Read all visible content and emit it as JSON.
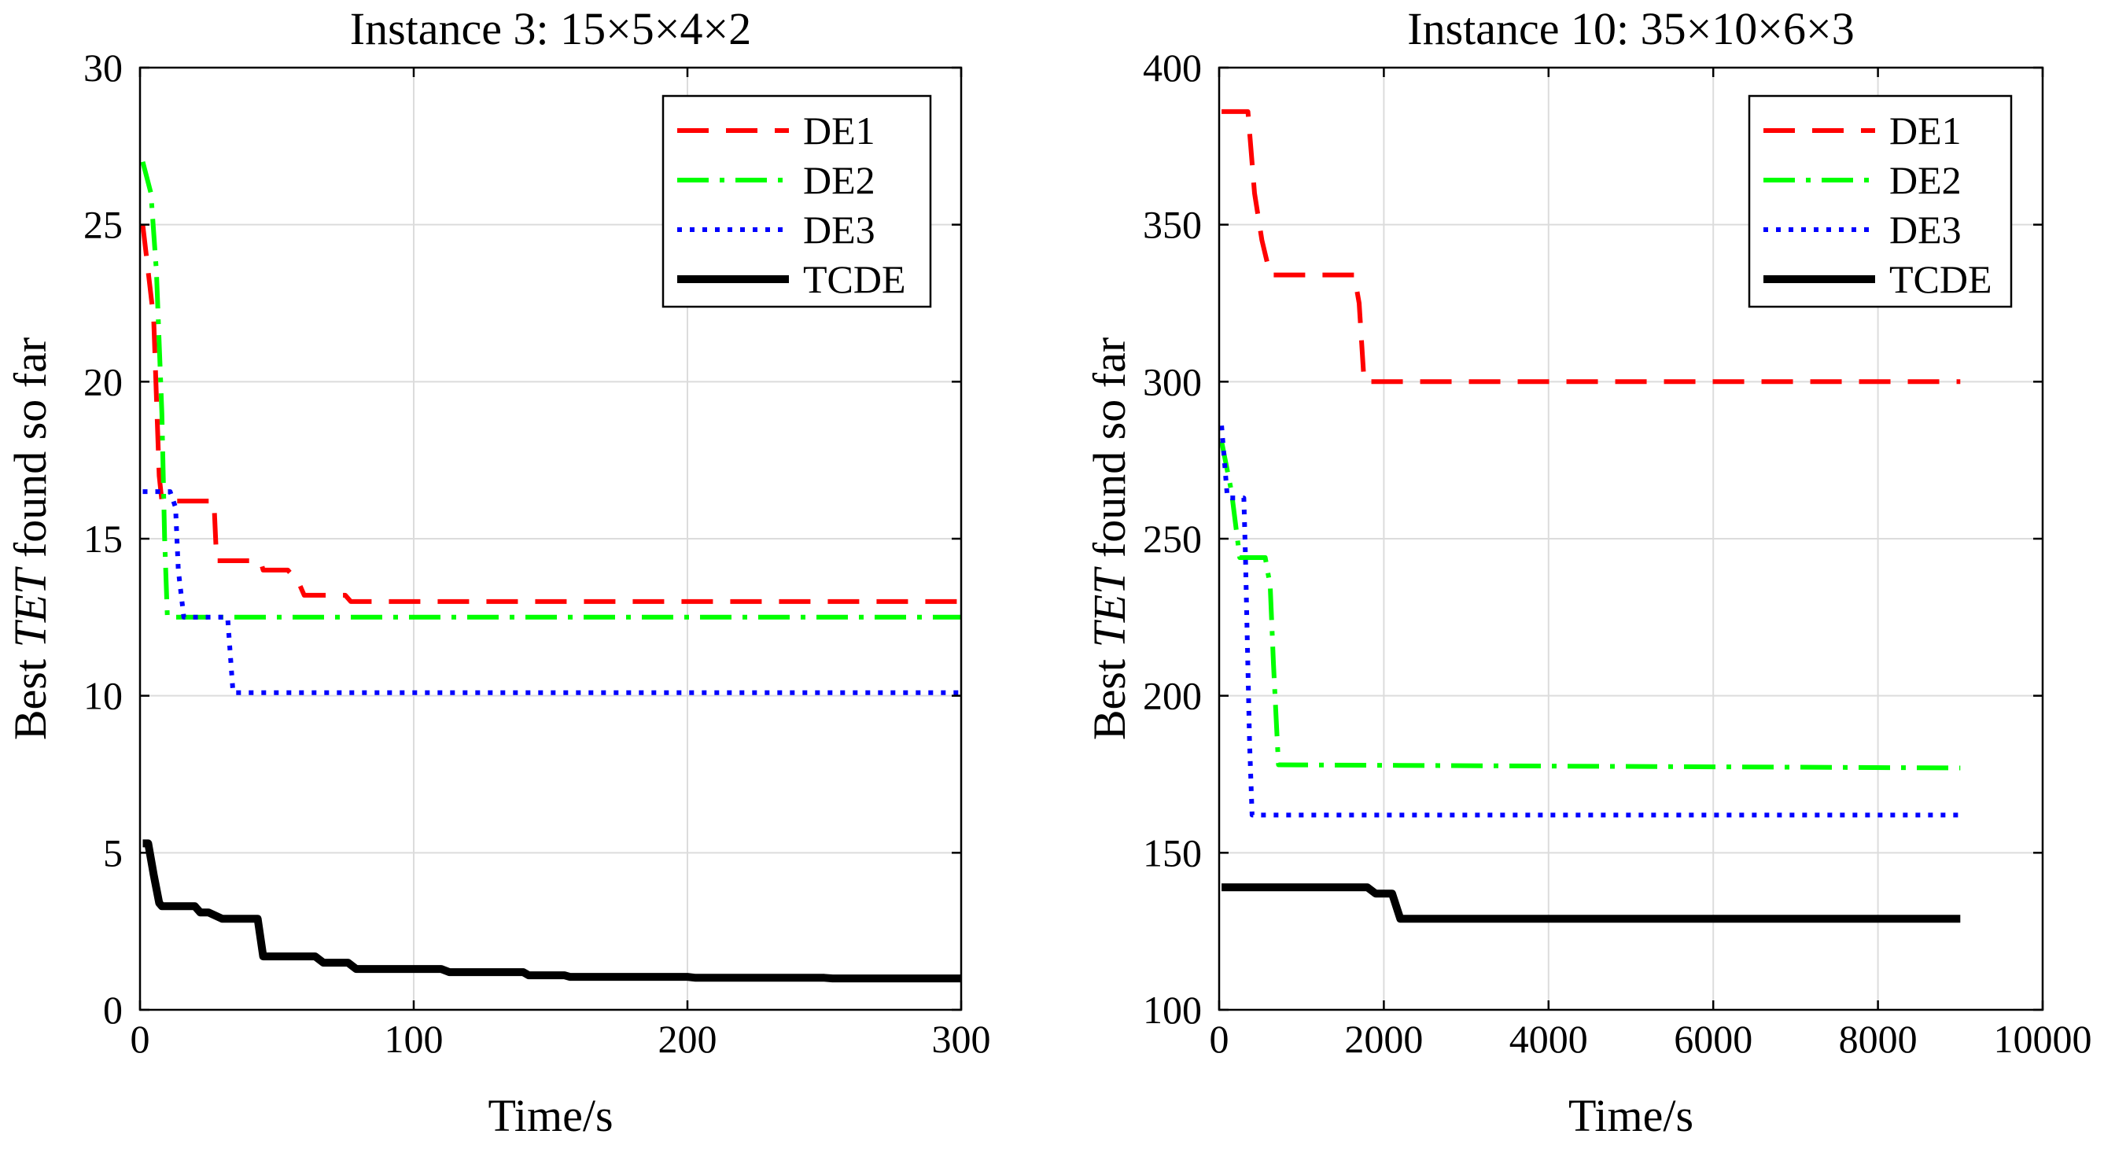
{
  "chart_data": [
    {
      "type": "line",
      "title": "Instance 3: 15×5×4×2",
      "xlabel": "Time/s",
      "ylabel_prefix": "Best ",
      "ylabel_italic": "TET",
      "ylabel_suffix": " found so far",
      "xlim": [
        0,
        300
      ],
      "ylim": [
        0,
        30
      ],
      "xticks": [
        0,
        100,
        200,
        300
      ],
      "yticks": [
        0,
        5,
        10,
        15,
        20,
        25,
        30
      ],
      "grid": true,
      "legend_position": "top-right",
      "series": [
        {
          "name": "DE1",
          "color": "#ff0000",
          "style": "dashed",
          "points": [
            [
              1,
              25
            ],
            [
              5,
              22
            ],
            [
              7,
              17
            ],
            [
              8,
              16.2
            ],
            [
              20,
              16.2
            ],
            [
              22,
              16.2
            ],
            [
              27,
              16.2
            ],
            [
              28,
              14.3
            ],
            [
              44,
              14.3
            ],
            [
              45,
              14
            ],
            [
              54,
              14
            ],
            [
              58,
              13.6
            ],
            [
              60,
              13.2
            ],
            [
              75,
              13.2
            ],
            [
              77,
              13
            ],
            [
              300,
              13
            ]
          ]
        },
        {
          "name": "DE2",
          "color": "#00ff00",
          "style": "dashdot",
          "points": [
            [
              1,
              27
            ],
            [
              4,
              26
            ],
            [
              6,
              23.5
            ],
            [
              8,
              19
            ],
            [
              9,
              15
            ],
            [
              10,
              12.5
            ],
            [
              300,
              12.5
            ]
          ]
        },
        {
          "name": "DE3",
          "color": "#0000ff",
          "style": "dotted",
          "points": [
            [
              1,
              16.5
            ],
            [
              11,
              16.5
            ],
            [
              13,
              16
            ],
            [
              14,
              14
            ],
            [
              16,
              12.5
            ],
            [
              30,
              12.5
            ],
            [
              32,
              12.5
            ],
            [
              34,
              10.1
            ],
            [
              300,
              10.1
            ]
          ]
        },
        {
          "name": "TCDE",
          "color": "#000000",
          "style": "solid",
          "points": [
            [
              1,
              5.3
            ],
            [
              3,
              5.3
            ],
            [
              5,
              4.3
            ],
            [
              7,
              3.4
            ],
            [
              8,
              3.3
            ],
            [
              20,
              3.3
            ],
            [
              22,
              3.1
            ],
            [
              25,
              3.1
            ],
            [
              30,
              2.9
            ],
            [
              43,
              2.9
            ],
            [
              45,
              1.7
            ],
            [
              64,
              1.7
            ],
            [
              67,
              1.5
            ],
            [
              76,
              1.5
            ],
            [
              79,
              1.3
            ],
            [
              100,
              1.3
            ],
            [
              110,
              1.3
            ],
            [
              113,
              1.2
            ],
            [
              140,
              1.2
            ],
            [
              142,
              1.1
            ],
            [
              155,
              1.1
            ],
            [
              157,
              1.05
            ],
            [
              200,
              1.05
            ],
            [
              203,
              1.02
            ],
            [
              250,
              1.02
            ],
            [
              253,
              1.0
            ],
            [
              300,
              1.0
            ]
          ]
        }
      ]
    },
    {
      "type": "line",
      "title": "Instance 10: 35×10×6×3",
      "xlabel": "Time/s",
      "ylabel_prefix": "Best ",
      "ylabel_italic": "TET",
      "ylabel_suffix": " found so far",
      "xlim": [
        0,
        10000
      ],
      "ylim": [
        100,
        400
      ],
      "xticks": [
        0,
        2000,
        4000,
        6000,
        8000,
        10000
      ],
      "yticks": [
        100,
        150,
        200,
        250,
        300,
        350,
        400
      ],
      "grid": true,
      "legend_position": "top-right",
      "series": [
        {
          "name": "DE1",
          "color": "#ff0000",
          "style": "dashed",
          "points": [
            [
              30,
              386
            ],
            [
              350,
              386
            ],
            [
              430,
              360
            ],
            [
              520,
              345
            ],
            [
              620,
              334
            ],
            [
              1640,
              334
            ],
            [
              1700,
              325
            ],
            [
              1760,
              300
            ],
            [
              9000,
              300
            ]
          ]
        },
        {
          "name": "DE2",
          "color": "#00ff00",
          "style": "dashdot",
          "points": [
            [
              30,
              281
            ],
            [
              150,
              265
            ],
            [
              250,
              244
            ],
            [
              560,
              244
            ],
            [
              620,
              235
            ],
            [
              660,
              210
            ],
            [
              720,
              178
            ],
            [
              9000,
              177
            ]
          ]
        },
        {
          "name": "DE3",
          "color": "#0000ff",
          "style": "dotted",
          "points": [
            [
              30,
              286
            ],
            [
              100,
              263
            ],
            [
              300,
              263
            ],
            [
              320,
              244
            ],
            [
              340,
              220
            ],
            [
              370,
              185
            ],
            [
              400,
              162
            ],
            [
              9000,
              162
            ]
          ]
        },
        {
          "name": "TCDE",
          "color": "#000000",
          "style": "solid",
          "points": [
            [
              30,
              139
            ],
            [
              1800,
              139
            ],
            [
              1900,
              137
            ],
            [
              2100,
              137
            ],
            [
              2200,
              129
            ],
            [
              9000,
              129
            ]
          ]
        }
      ]
    }
  ]
}
